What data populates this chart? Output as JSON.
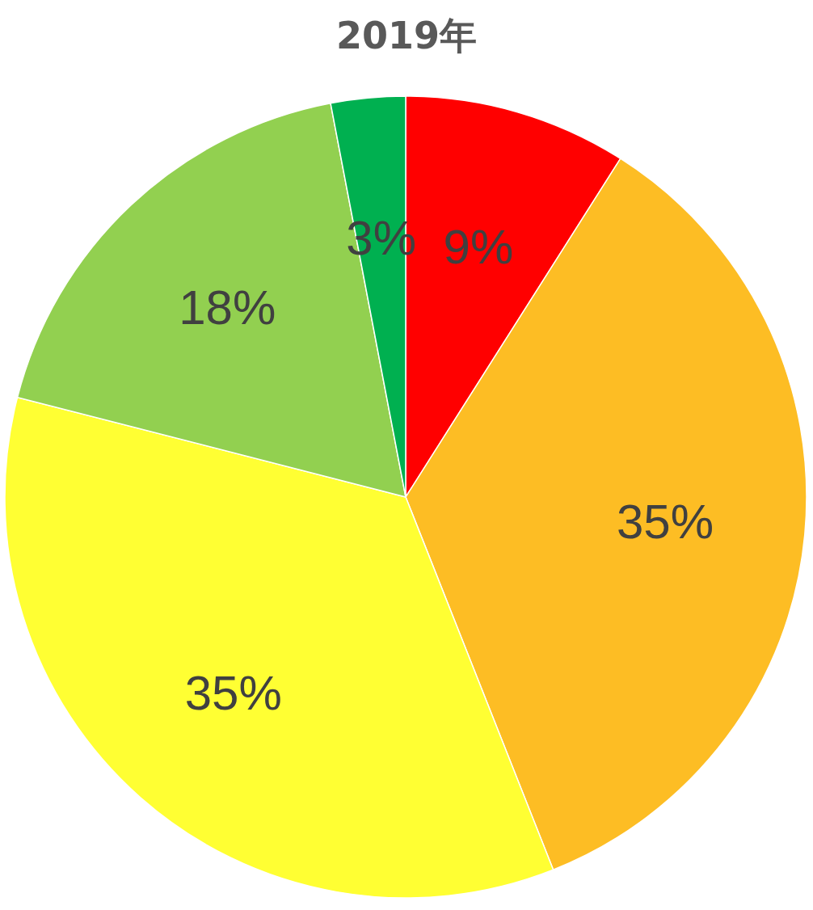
{
  "chart_data": {
    "type": "pie",
    "title": "2019年",
    "categories": [
      null,
      null,
      null,
      null,
      null
    ],
    "values": [
      9,
      35,
      35,
      18,
      3
    ],
    "colors": [
      "#ff0000",
      "#fdbd24",
      "#ffff33",
      "#92d050",
      "#00b050"
    ],
    "value_labels": [
      "9%",
      "35%",
      "35%",
      "18%",
      "3%"
    ]
  }
}
